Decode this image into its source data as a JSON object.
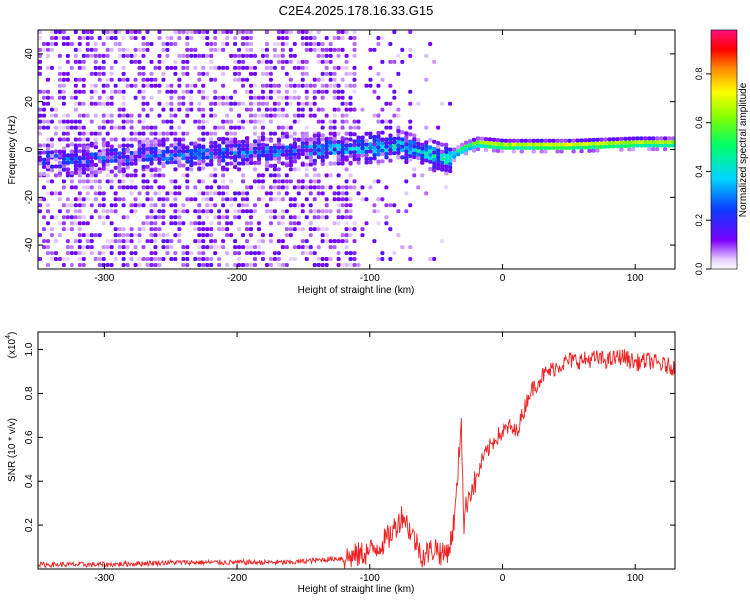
{
  "figure": {
    "title": "C2E4.2025.178.16.33.G15"
  },
  "chart_data": [
    {
      "type": "heatmap",
      "xlabel": "Height of straight line (km)",
      "ylabel": "Frequency (Hz)",
      "xlim": [
        -350,
        130
      ],
      "ylim": [
        -50,
        50
      ],
      "xticks": [
        -300,
        -200,
        -100,
        0,
        100
      ],
      "yticks": [
        -40,
        -20,
        0,
        20,
        40
      ],
      "colorbar": {
        "label": "Normalized spectral amplitude",
        "range": [
          0,
          0.98
        ],
        "ticks": [
          "0.0",
          "0.2",
          "0.4",
          "0.6",
          "0.8"
        ],
        "colormap": "rainbow (violet → red → magenta)"
      },
      "ridge": {
        "description": "Signal ridge near 0 Hz; noisy and weak below about -60 km, strong and narrow above about -30 km",
        "x": [
          -350,
          -300,
          -250,
          -200,
          -150,
          -100,
          -80,
          -60,
          -45,
          -30,
          -20,
          0,
          50,
          100,
          130
        ],
        "frequency": [
          -5,
          -4,
          -3,
          -2,
          -1,
          0,
          1,
          -2,
          -5,
          0,
          2,
          1,
          1,
          2,
          2
        ],
        "amplitude": [
          0.15,
          0.18,
          0.2,
          0.22,
          0.25,
          0.3,
          0.35,
          0.35,
          0.4,
          0.55,
          0.7,
          0.75,
          0.8,
          0.75,
          0.7
        ]
      }
    },
    {
      "type": "line",
      "xlabel": "Height of straight line (km)",
      "ylabel": "SNR (10 * v/v)",
      "yscale_label": "(x10",
      "yscale_exponent": "4",
      "xlim": [
        -350,
        130
      ],
      "ylim": [
        0,
        1.08
      ],
      "xticks": [
        -300,
        -200,
        -100,
        0,
        100
      ],
      "yticks": [
        0.2,
        0.4,
        0.6,
        0.8,
        1.0
      ],
      "ytick_labels": [
        "0.2",
        "0.4",
        "0.6",
        "0.8",
        "1.0"
      ],
      "series": [
        {
          "color": "#ee2222",
          "x": [
            -350,
            -300,
            -250,
            -200,
            -180,
            -160,
            -140,
            -120,
            -110,
            -100,
            -95,
            -90,
            -85,
            -80,
            -75,
            -70,
            -65,
            -60,
            -55,
            -50,
            -45,
            -40,
            -38,
            -35,
            -33,
            -31,
            -30,
            -29,
            -27,
            -25,
            -20,
            -15,
            -10,
            -5,
            0,
            5,
            10,
            15,
            20,
            30,
            40,
            50,
            60,
            70,
            80,
            90,
            100,
            110,
            120,
            130
          ],
          "y": [
            0.02,
            0.02,
            0.03,
            0.03,
            0.03,
            0.03,
            0.04,
            0.05,
            0.06,
            0.08,
            0.1,
            0.12,
            0.15,
            0.2,
            0.25,
            0.18,
            0.12,
            0.06,
            0.08,
            0.1,
            0.06,
            0.1,
            0.15,
            0.3,
            0.5,
            0.7,
            0.4,
            0.2,
            0.3,
            0.35,
            0.4,
            0.5,
            0.55,
            0.6,
            0.62,
            0.65,
            0.62,
            0.7,
            0.8,
            0.88,
            0.92,
            0.95,
            0.95,
            0.96,
            0.95,
            0.97,
            0.94,
            0.95,
            0.93,
            0.92
          ]
        }
      ]
    }
  ]
}
